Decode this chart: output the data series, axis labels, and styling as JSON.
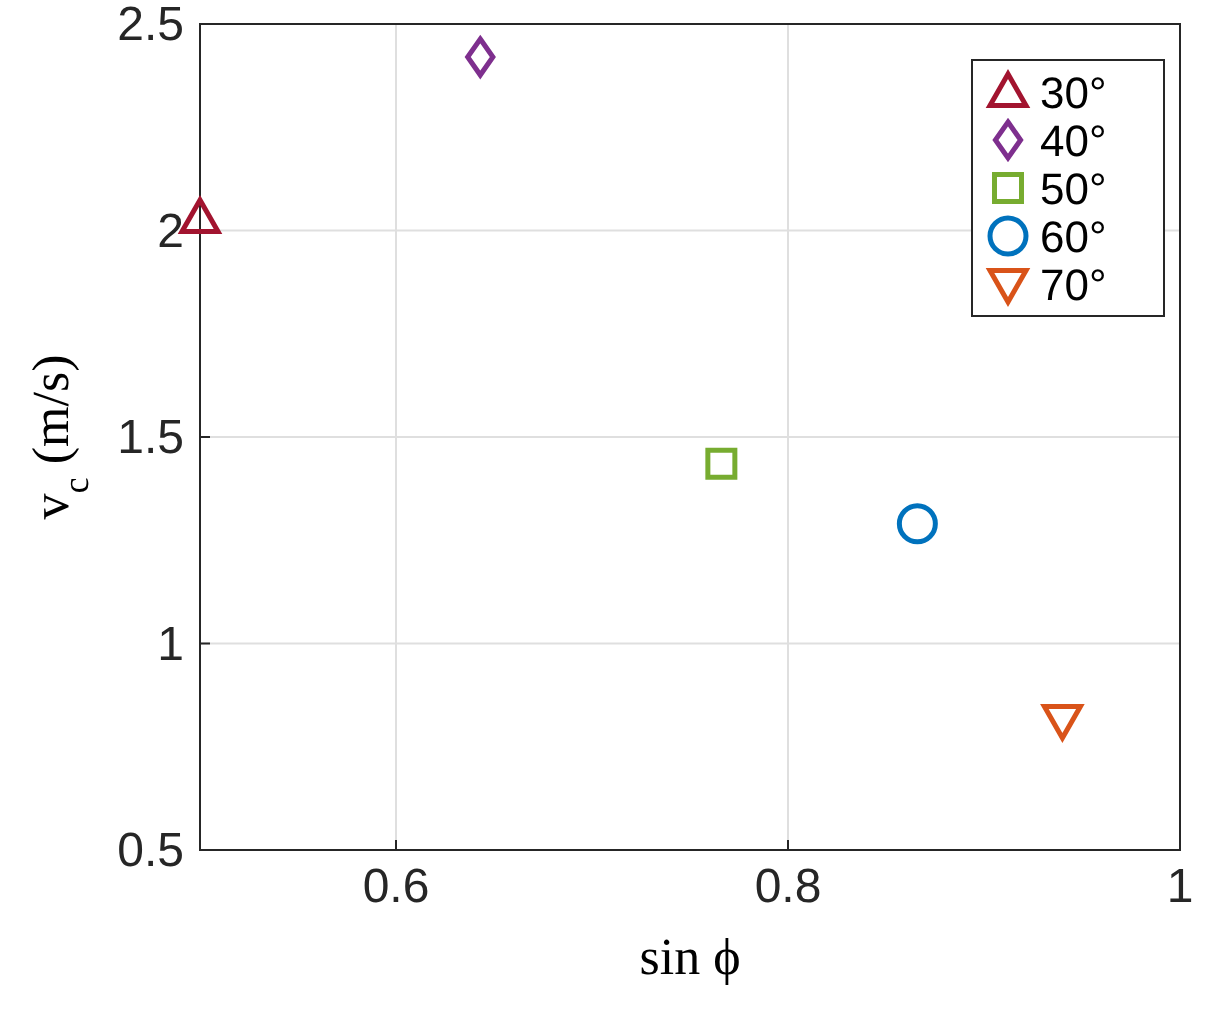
{
  "chart_data": {
    "type": "scatter",
    "xlabel": "sin ϕ",
    "ylabel": "v$_{c}$ (m/s)",
    "xlim": [
      0.5,
      1
    ],
    "xticks": [
      0.6,
      0.8,
      1
    ],
    "ylim": [
      0.5,
      2.5
    ],
    "yticks": [
      0.5,
      1,
      1.5,
      2,
      2.5
    ],
    "grid": true,
    "legend": "top right",
    "series": [
      {
        "name": "30°",
        "color": "#a2142f",
        "marker": "triangle",
        "x": [
          0.5
        ],
        "values": [
          2.03
        ]
      },
      {
        "name": "40°",
        "color": "#7e2f8e",
        "marker": "diamond",
        "x": [
          0.643
        ],
        "values": [
          2.42
        ]
      },
      {
        "name": "50°",
        "color": "#77ac30",
        "marker": "square",
        "x": [
          0.766
        ],
        "values": [
          1.435
        ]
      },
      {
        "name": "60°",
        "color": "#0072bd",
        "marker": "circle",
        "x": [
          0.866
        ],
        "values": [
          1.29
        ]
      },
      {
        "name": "70°",
        "color": "#d95319",
        "marker": "triangle-down",
        "x": [
          0.94
        ],
        "values": [
          0.815
        ]
      }
    ]
  }
}
